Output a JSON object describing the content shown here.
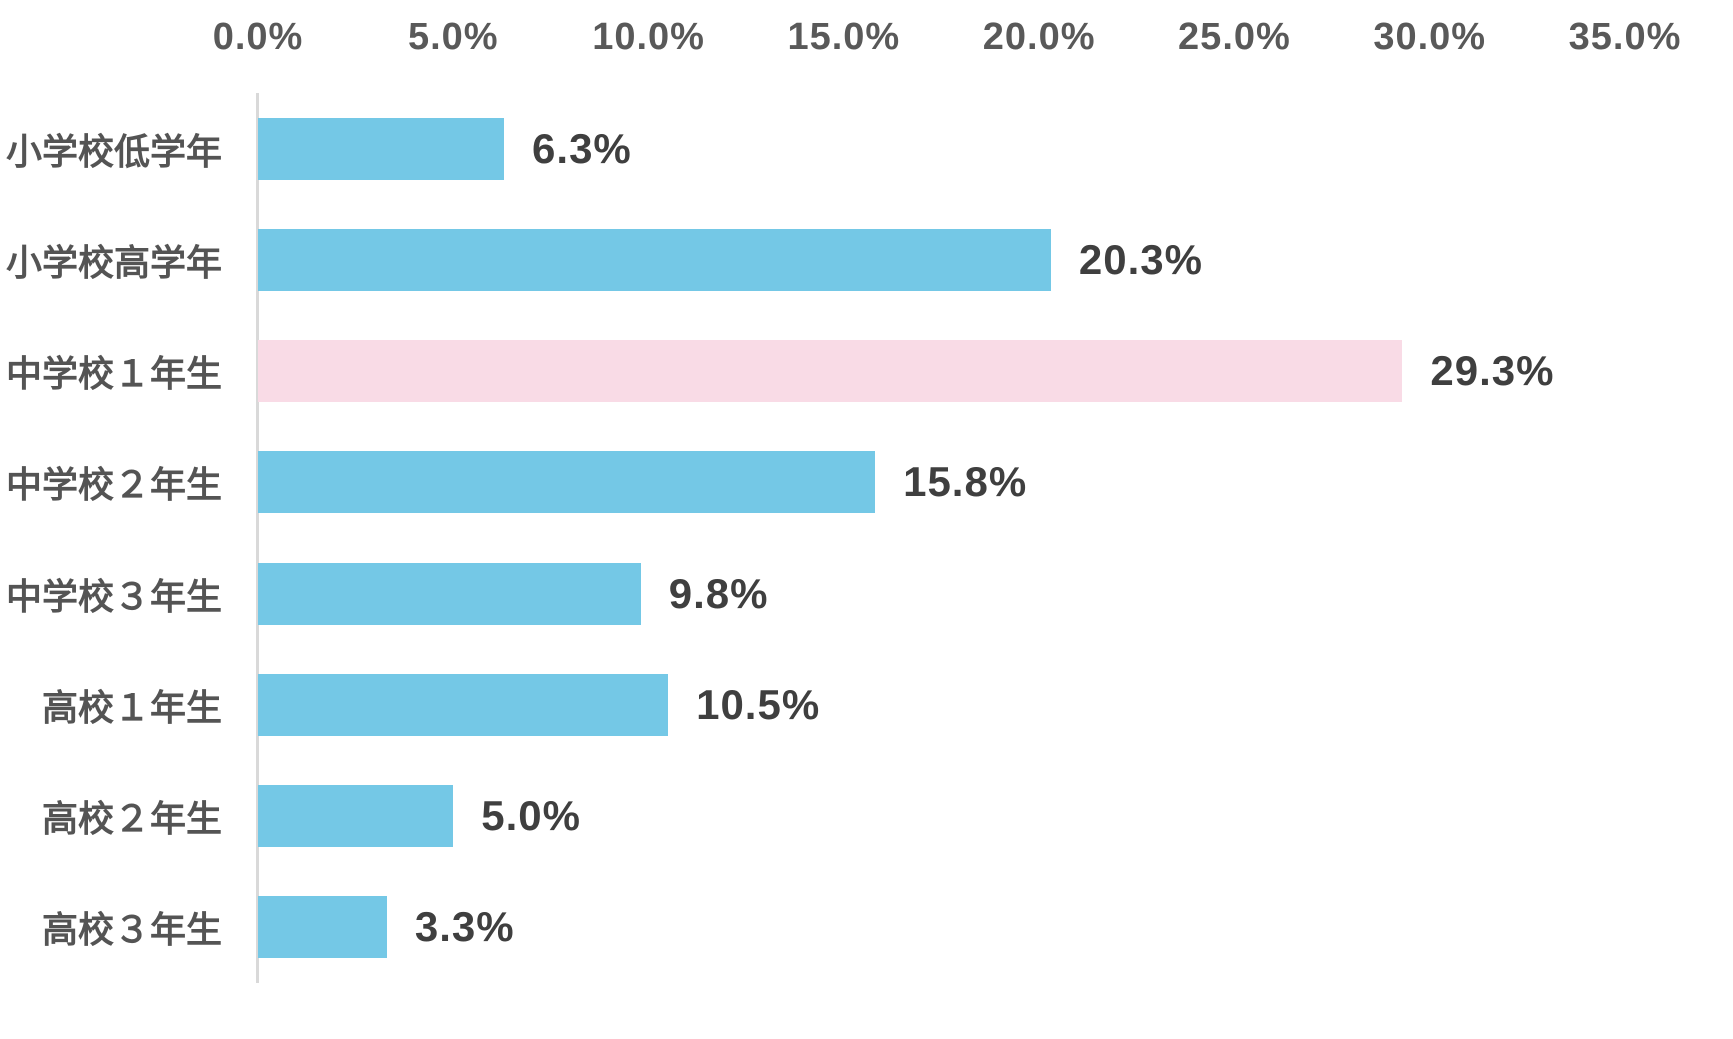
{
  "chart_data": {
    "type": "bar",
    "orientation": "horizontal",
    "title": "",
    "categories": [
      "小学校低学年",
      "小学校高学年",
      "中学校１年生",
      "中学校２年生",
      "中学校３年生",
      "高校１年生",
      "高校２年生",
      "高校３年生"
    ],
    "values": [
      6.3,
      20.3,
      29.3,
      15.8,
      9.8,
      10.5,
      5.0,
      3.3
    ],
    "value_labels": [
      "6.3%",
      "20.3%",
      "29.3%",
      "15.8%",
      "9.8%",
      "10.5%",
      "5.0%",
      "3.3%"
    ],
    "highlight_index": 2,
    "x_axis": {
      "position": "top",
      "min": 0,
      "max": 35,
      "tick_step": 5,
      "ticks": [
        "0.0%",
        "5.0%",
        "10.0%",
        "15.0%",
        "20.0%",
        "25.0%",
        "30.0%",
        "35.0%"
      ]
    },
    "grid": false,
    "legend": false,
    "colors": {
      "bar": "#74C8E6",
      "highlight_bar": "#F9DBE6",
      "axis_line": "#D9D9D9",
      "tick_label": "#595959",
      "category_label": "#545454",
      "value_label": "#3F3F3F",
      "background": "#FFFFFF"
    }
  }
}
